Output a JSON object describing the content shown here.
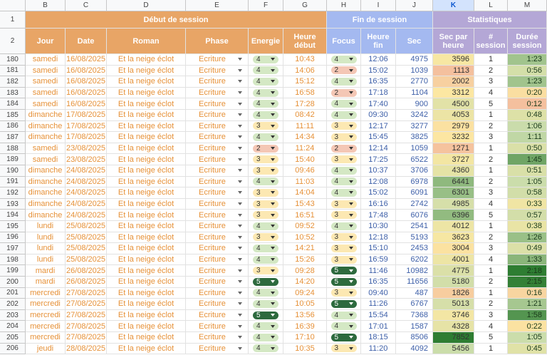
{
  "column_letters": [
    "B",
    "C",
    "D",
    "E",
    "F",
    "G",
    "H",
    "I",
    "J",
    "K",
    "L",
    "M"
  ],
  "row_numbers": [
    "1",
    "2"
  ],
  "groups": [
    "Début de session",
    "Fin de session",
    "Statistiques"
  ],
  "columns": [
    "Jour",
    "Date",
    "Roman",
    "Phase",
    "Energie",
    "Heure début",
    "Focus",
    "Heure fin",
    "Sec",
    "Sec par heure",
    "# session",
    "Durée session"
  ],
  "rows": [
    {
      "row": "180",
      "cells": [
        "samedi",
        "16/08/2025",
        "Et la neige éclot",
        "Ecriture",
        "4",
        "10:43",
        "4",
        "12:06",
        4975,
        3596,
        1,
        "1:23"
      ]
    },
    {
      "row": "181",
      "cells": [
        "samedi",
        "16/08/2025",
        "Et la neige éclot",
        "Ecriture",
        "4",
        "14:06",
        "2",
        "15:02",
        1039,
        1113,
        2,
        "0:56"
      ]
    },
    {
      "row": "182",
      "cells": [
        "samedi",
        "16/08/2025",
        "Et la neige éclot",
        "Ecriture",
        "4",
        "15:12",
        "4",
        "16:35",
        2770,
        2002,
        3,
        "1:23"
      ]
    },
    {
      "row": "183",
      "cells": [
        "samedi",
        "16/08/2025",
        "Et la neige éclot",
        "Ecriture",
        "4",
        "16:58",
        "2",
        "17:18",
        1104,
        3312,
        4,
        "0:20"
      ]
    },
    {
      "row": "184",
      "cells": [
        "samedi",
        "16/08/2025",
        "Et la neige éclot",
        "Ecriture",
        "4",
        "17:28",
        "4",
        "17:40",
        900,
        4500,
        5,
        "0:12"
      ]
    },
    {
      "row": "185",
      "cells": [
        "dimanche",
        "17/08/2025",
        "Et la neige éclot",
        "Ecriture",
        "4",
        "08:42",
        "4",
        "09:30",
        3242,
        4053,
        1,
        "0:48"
      ]
    },
    {
      "row": "186",
      "cells": [
        "dimanche",
        "17/08/2025",
        "Et la neige éclot",
        "Ecriture",
        "3",
        "11:11",
        "3",
        "12:17",
        3277,
        2979,
        2,
        "1:06"
      ]
    },
    {
      "row": "187",
      "cells": [
        "dimanche",
        "17/08/2025",
        "Et la neige éclot",
        "Ecriture",
        "4",
        "14:34",
        "3",
        "15:45",
        3825,
        3232,
        3,
        "1:11"
      ]
    },
    {
      "row": "188",
      "cells": [
        "samedi",
        "23/08/2025",
        "Et la neige éclot",
        "Ecriture",
        "2",
        "11:24",
        "2",
        "12:14",
        1059,
        1271,
        1,
        "0:50"
      ]
    },
    {
      "row": "189",
      "cells": [
        "samedi",
        "23/08/2025",
        "Et la neige éclot",
        "Ecriture",
        "3",
        "15:40",
        "3",
        "17:25",
        6522,
        3727,
        2,
        "1:45"
      ]
    },
    {
      "row": "190",
      "cells": [
        "dimanche",
        "24/08/2025",
        "Et la neige éclot",
        "Ecriture",
        "3",
        "09:46",
        "4",
        "10:37",
        3706,
        4360,
        1,
        "0:51"
      ]
    },
    {
      "row": "191",
      "cells": [
        "dimanche",
        "24/08/2025",
        "Et la neige éclot",
        "Ecriture",
        "4",
        "11:03",
        "4",
        "12:08",
        6978,
        6441,
        2,
        "1:05"
      ]
    },
    {
      "row": "192",
      "cells": [
        "dimanche",
        "24/08/2025",
        "Et la neige éclot",
        "Ecriture",
        "3",
        "14:04",
        "4",
        "15:02",
        6091,
        6301,
        3,
        "0:58"
      ]
    },
    {
      "row": "193",
      "cells": [
        "dimanche",
        "24/08/2025",
        "Et la neige éclot",
        "Ecriture",
        "3",
        "15:43",
        "3",
        "16:16",
        2742,
        4985,
        4,
        "0:33"
      ]
    },
    {
      "row": "194",
      "cells": [
        "dimanche",
        "24/08/2025",
        "Et la neige éclot",
        "Ecriture",
        "3",
        "16:51",
        "3",
        "17:48",
        6076,
        6396,
        5,
        "0:57"
      ]
    },
    {
      "row": "195",
      "cells": [
        "lundi",
        "25/08/2025",
        "Et la neige éclot",
        "Ecriture",
        "4",
        "09:52",
        "4",
        "10:30",
        2541,
        4012,
        1,
        "0:38"
      ]
    },
    {
      "row": "196",
      "cells": [
        "lundi",
        "25/08/2025",
        "Et la neige éclot",
        "Ecriture",
        "3",
        "10:52",
        "3",
        "12:18",
        5193,
        3623,
        2,
        "1:26"
      ]
    },
    {
      "row": "197",
      "cells": [
        "lundi",
        "25/08/2025",
        "Et la neige éclot",
        "Ecriture",
        "4",
        "14:21",
        "3",
        "15:10",
        2453,
        3004,
        3,
        "0:49"
      ]
    },
    {
      "row": "198",
      "cells": [
        "lundi",
        "25/08/2025",
        "Et la neige éclot",
        "Ecriture",
        "4",
        "15:26",
        "3",
        "16:59",
        6202,
        4001,
        4,
        "1:33"
      ]
    },
    {
      "row": "199",
      "cells": [
        "mardi",
        "26/08/2025",
        "Et la neige éclot",
        "Ecriture",
        "3",
        "09:28",
        "5",
        "11:46",
        10982,
        4775,
        1,
        "2:18"
      ]
    },
    {
      "row": "200",
      "cells": [
        "mardi",
        "26/08/2025",
        "Et la neige éclot",
        "Ecriture",
        "5",
        "14:20",
        "5",
        "16:35",
        11656,
        5180,
        2,
        "2:15"
      ]
    },
    {
      "row": "201",
      "cells": [
        "mercredi",
        "27/08/2025",
        "Et la neige éclot",
        "Ecriture",
        "4",
        "09:24",
        "3",
        "09:40",
        487,
        1826,
        1,
        "0:16"
      ]
    },
    {
      "row": "202",
      "cells": [
        "mercredi",
        "27/08/2025",
        "Et la neige éclot",
        "Ecriture",
        "4",
        "10:05",
        "5",
        "11:26",
        6767,
        5013,
        2,
        "1:21"
      ]
    },
    {
      "row": "203",
      "cells": [
        "mercredi",
        "27/08/2025",
        "Et la neige éclot",
        "Ecriture",
        "5",
        "13:56",
        "4",
        "15:54",
        7368,
        3746,
        3,
        "1:58"
      ]
    },
    {
      "row": "204",
      "cells": [
        "mercredi",
        "27/08/2025",
        "Et la neige éclot",
        "Ecriture",
        "4",
        "16:39",
        "4",
        "17:01",
        1587,
        4328,
        4,
        "0:22"
      ]
    },
    {
      "row": "205",
      "cells": [
        "mercredi",
        "27/08/2025",
        "Et la neige éclot",
        "Ecriture",
        "4",
        "17:10",
        "5",
        "18:15",
        8506,
        7852,
        5,
        "1:05"
      ]
    },
    {
      "row": "206",
      "cells": [
        "jeudi",
        "28/08/2025",
        "Et la neige éclot",
        "Ecriture",
        "4",
        "10:35",
        "3",
        "11:20",
        4092,
        5456,
        1,
        "0:45"
      ]
    }
  ],
  "group_colors": [
    "#e8a566",
    "#a4b9f0",
    "#b4a7d6"
  ],
  "level_colors": {
    "2": "#f4c7b5",
    "3": "#fce8b2",
    "4": "#d4e8c4",
    "5": "#2d6a3e"
  },
  "heat_colors": [
    "#f4c09e",
    "#fce8a2",
    "#c8dcab",
    "#2e7d32"
  ]
}
